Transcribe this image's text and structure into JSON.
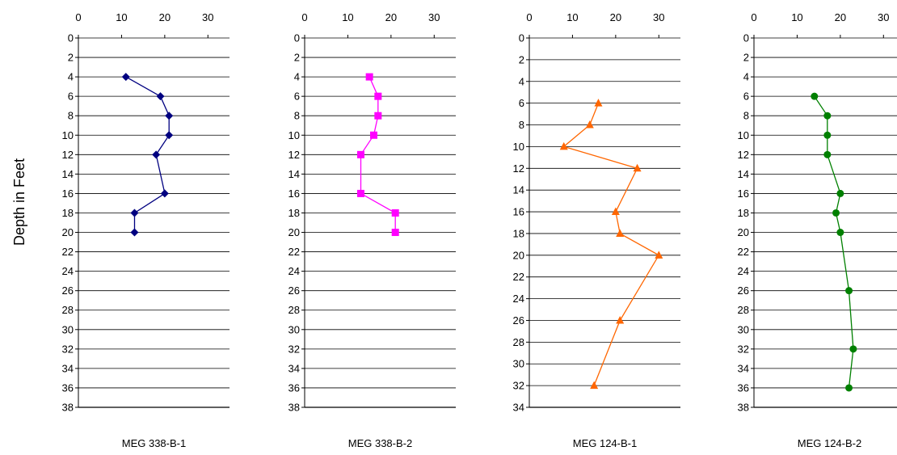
{
  "chart_data": {
    "type": "line",
    "ylabel": "Depth in Feet",
    "x_ticks": [
      "0",
      "10",
      "20",
      "30"
    ],
    "xlim": [
      0,
      35
    ],
    "grid": "horizontal",
    "y_inverted": true,
    "panels": [
      {
        "title": "MEG 338-B-1",
        "color": "#000080",
        "marker": "diamond",
        "ylim": [
          0,
          38
        ],
        "y_ticks": [
          "0",
          "2",
          "4",
          "6",
          "8",
          "10",
          "12",
          "14",
          "16",
          "18",
          "20",
          "22",
          "24",
          "26",
          "28",
          "30",
          "32",
          "34",
          "36",
          "38"
        ],
        "points": [
          [
            11,
            4
          ],
          [
            19,
            6
          ],
          [
            21,
            8
          ],
          [
            21,
            10
          ],
          [
            18,
            12
          ],
          [
            20,
            16
          ],
          [
            13,
            18
          ],
          [
            13,
            20
          ]
        ]
      },
      {
        "title": "MEG 338-B-2",
        "color": "#ff00ff",
        "marker": "square",
        "ylim": [
          0,
          38
        ],
        "y_ticks": [
          "0",
          "2",
          "4",
          "6",
          "8",
          "10",
          "12",
          "14",
          "16",
          "18",
          "20",
          "22",
          "24",
          "26",
          "28",
          "30",
          "32",
          "34",
          "36",
          "38"
        ],
        "points": [
          [
            15,
            4
          ],
          [
            17,
            6
          ],
          [
            17,
            8
          ],
          [
            16,
            10
          ],
          [
            13,
            12
          ],
          [
            13,
            16
          ],
          [
            21,
            18
          ],
          [
            21,
            20
          ]
        ]
      },
      {
        "title": "MEG 124-B-1",
        "color": "#ff6600",
        "marker": "triangle",
        "ylim": [
          0,
          34
        ],
        "y_ticks": [
          "0",
          "2",
          "4",
          "6",
          "8",
          "10",
          "12",
          "14",
          "16",
          "18",
          "20",
          "22",
          "24",
          "26",
          "28",
          "30",
          "32",
          "34"
        ],
        "points": [
          [
            16,
            6
          ],
          [
            14,
            8
          ],
          [
            8,
            10
          ],
          [
            25,
            12
          ],
          [
            20,
            16
          ],
          [
            21,
            18
          ],
          [
            30,
            20
          ],
          [
            21,
            26
          ],
          [
            15,
            32
          ]
        ]
      },
      {
        "title": "MEG 124-B-2",
        "color": "#008000",
        "marker": "circle",
        "ylim": [
          0,
          38
        ],
        "y_ticks": [
          "0",
          "2",
          "4",
          "6",
          "8",
          "10",
          "12",
          "14",
          "16",
          "18",
          "20",
          "22",
          "24",
          "26",
          "28",
          "30",
          "32",
          "34",
          "36",
          "38"
        ],
        "points": [
          [
            14,
            6
          ],
          [
            17,
            8
          ],
          [
            17,
            10
          ],
          [
            17,
            12
          ],
          [
            20,
            16
          ],
          [
            19,
            18
          ],
          [
            20,
            20
          ],
          [
            22,
            26
          ],
          [
            23,
            32
          ],
          [
            22,
            36
          ]
        ]
      }
    ]
  }
}
